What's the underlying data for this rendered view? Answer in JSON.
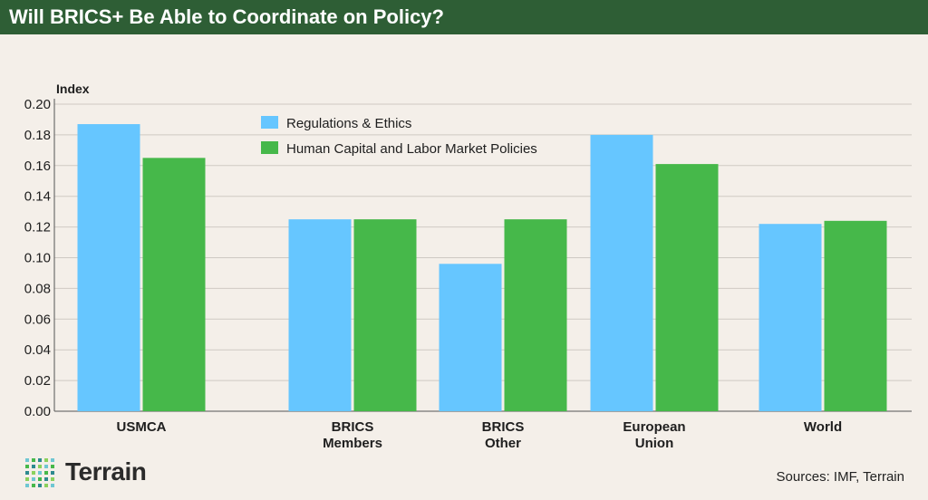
{
  "header": {
    "title": "Will BRICS+ Be Able to Coordinate on Policy?",
    "bar_color": "#2e5e35"
  },
  "chart_data": {
    "type": "bar",
    "ylabel": "Index",
    "ylim": [
      0,
      0.2
    ],
    "yticks": [
      "0.00",
      "0.02",
      "0.04",
      "0.06",
      "0.08",
      "0.10",
      "0.12",
      "0.14",
      "0.16",
      "0.18",
      "0.20"
    ],
    "grid": true,
    "legend_position": "top-center",
    "categories": [
      [
        "USMCA"
      ],
      [
        "BRICS",
        "Members"
      ],
      [
        "BRICS",
        "Other"
      ],
      [
        "European",
        "Union"
      ],
      [
        "World"
      ]
    ],
    "series": [
      {
        "name": "Regulations & Ethics",
        "color": "#66c6ff",
        "values": [
          0.187,
          0.125,
          0.096,
          0.18,
          0.122
        ]
      },
      {
        "name": "Human Capital and Labor Market Policies",
        "color": "#46b84a",
        "values": [
          0.165,
          0.125,
          0.125,
          0.161,
          0.124
        ]
      }
    ]
  },
  "footer": {
    "logo_text": "Terrain",
    "logo_icon": "dotted-grid-logo",
    "source": "Sources: IMF, Terrain"
  }
}
